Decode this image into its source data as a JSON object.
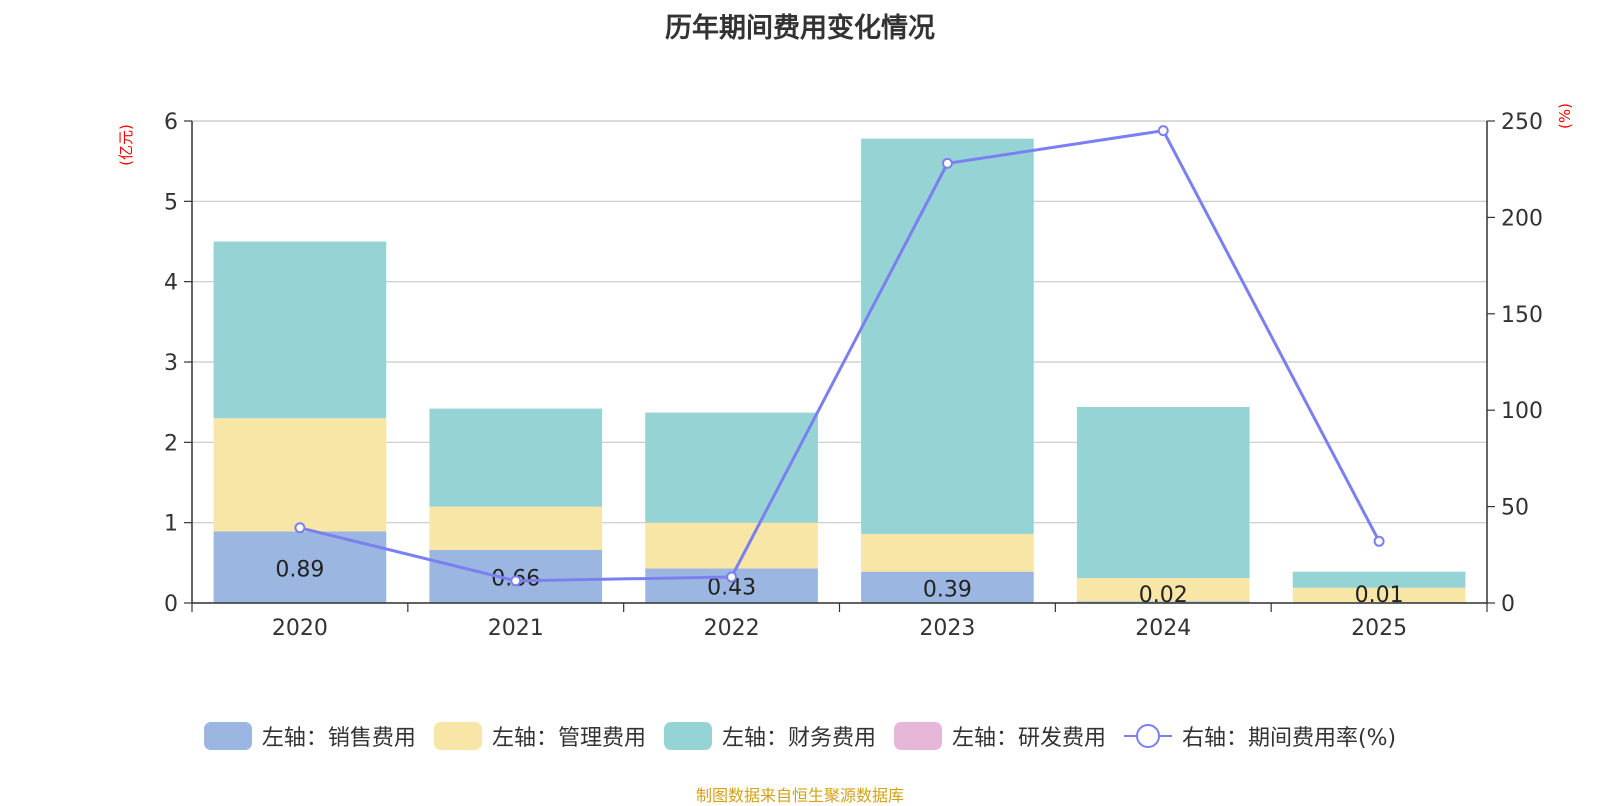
{
  "title": "历年期间费用变化情况",
  "source": "制图数据来自恒生聚源数据库",
  "chart_data": {
    "type": "bar",
    "stacked": true,
    "categories": [
      "2020",
      "2021",
      "2022",
      "2023",
      "2024",
      "2025"
    ],
    "left_axis": {
      "unit": "(亿元)",
      "ylim": [
        0,
        6
      ],
      "ticks": [
        "0",
        "1",
        "2",
        "3",
        "4",
        "5",
        "6"
      ]
    },
    "right_axis": {
      "unit": "(%)",
      "ylim": [
        0,
        250
      ],
      "ticks": [
        "0",
        "50",
        "100",
        "150",
        "200",
        "250"
      ]
    },
    "series": [
      {
        "name": "左轴：销售费用",
        "axis": "left",
        "color": "#9bb7e1",
        "values": [
          0.89,
          0.66,
          0.43,
          0.39,
          0.02,
          0.01
        ],
        "labels": [
          "0.89",
          "0.66",
          "0.43",
          "0.39",
          "0.02",
          "0.01"
        ]
      },
      {
        "name": "左轴：管理费用",
        "axis": "left",
        "color": "#f7e6a6",
        "values": [
          1.41,
          0.54,
          0.57,
          0.47,
          0.29,
          0.18
        ]
      },
      {
        "name": "左轴：财务费用",
        "axis": "left",
        "color": "#96d3d4",
        "values": [
          2.2,
          1.22,
          1.37,
          4.92,
          2.13,
          0.2
        ]
      },
      {
        "name": "左轴：研发费用",
        "axis": "left",
        "color": "#e7b7d9",
        "values": [
          0,
          0,
          0,
          0,
          0,
          0
        ]
      },
      {
        "name": "右轴：期间费用率(%)",
        "axis": "right",
        "type": "line",
        "color": "#7b7ff0",
        "values": [
          39,
          11.5,
          13.5,
          228,
          245,
          32
        ]
      }
    ],
    "grid": true,
    "legend_position": "bottom"
  }
}
